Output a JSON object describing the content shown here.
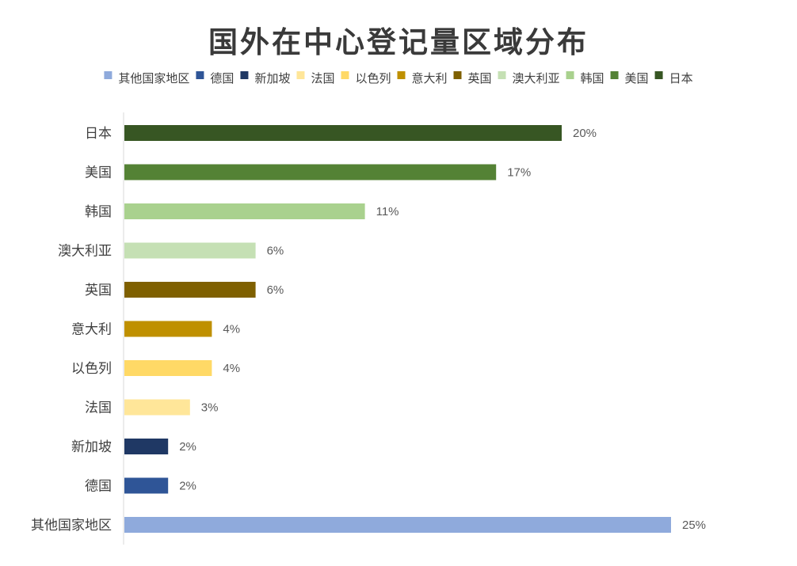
{
  "chart_data": {
    "type": "bar",
    "orientation": "horizontal",
    "title": "国外在中心登记量区域分布",
    "categories": [
      "日本",
      "美国",
      "韩国",
      "澳大利亚",
      "英国",
      "意大利",
      "以色列",
      "法国",
      "新加坡",
      "德国",
      "其他国家地区"
    ],
    "values": [
      20,
      17,
      11,
      6,
      6,
      4,
      4,
      3,
      2,
      2,
      25
    ],
    "value_labels": [
      "20%",
      "17%",
      "11%",
      "6%",
      "6%",
      "4%",
      "4%",
      "3%",
      "2%",
      "2%",
      "25%"
    ],
    "colors": [
      "#375623",
      "#548235",
      "#a9d18e",
      "#c5e0b4",
      "#7f6000",
      "#bf9000",
      "#ffd966",
      "#ffe699",
      "#1f3864",
      "#2f5597",
      "#8faadc"
    ],
    "legend": {
      "position": "top",
      "order": [
        "其他国家地区",
        "德国",
        "新加坡",
        "法国",
        "以色列",
        "意大利",
        "英国",
        "澳大利亚",
        "韩国",
        "美国",
        "日本"
      ]
    },
    "xlim": [
      0,
      25
    ],
    "grid": false
  }
}
